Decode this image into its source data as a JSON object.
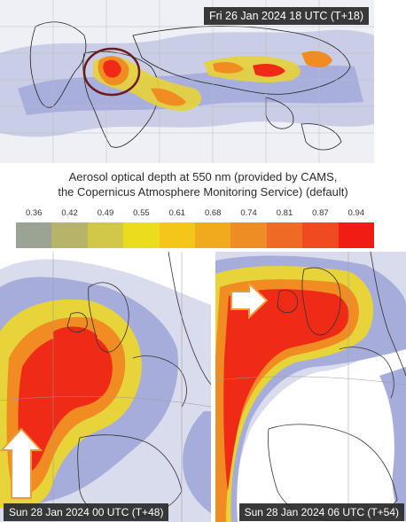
{
  "top_panel": {
    "timestamp": "Fri 26 Jan 2024 18 UTC (T+18)"
  },
  "caption": {
    "line1": "Aerosol optical depth at 550 nm (provided by CAMS,",
    "line2": "the Copernicus Atmosphere Monitoring Service) (default)"
  },
  "colorbar": {
    "ticks": [
      "0.36",
      "0.42",
      "0.49",
      "0.55",
      "0.61",
      "0.68",
      "0.74",
      "0.81",
      "0.87",
      "0.94"
    ],
    "colors": [
      "#9ba494",
      "#b7b46a",
      "#d1c84a",
      "#ecdc1e",
      "#f4c61a",
      "#f1a91d",
      "#ee8d24",
      "#ef6a24",
      "#ef4b20",
      "#f11d14"
    ]
  },
  "bottom_left": {
    "timestamp": "Sun 28 Jan 2024 00 UTC (T+48)"
  },
  "bottom_right": {
    "timestamp": "Sun 28 Jan 2024 06 UTC (T+54)"
  },
  "colors": {
    "map_bg": "#ffffff",
    "haze_light": "#d9dced",
    "haze_mid": "#a7adda",
    "yellow": "#e7d33a",
    "orange": "#f08c22",
    "red": "#ef2a17",
    "highlight_circle": "#6b1c1c",
    "arrow": "#ffffff"
  }
}
